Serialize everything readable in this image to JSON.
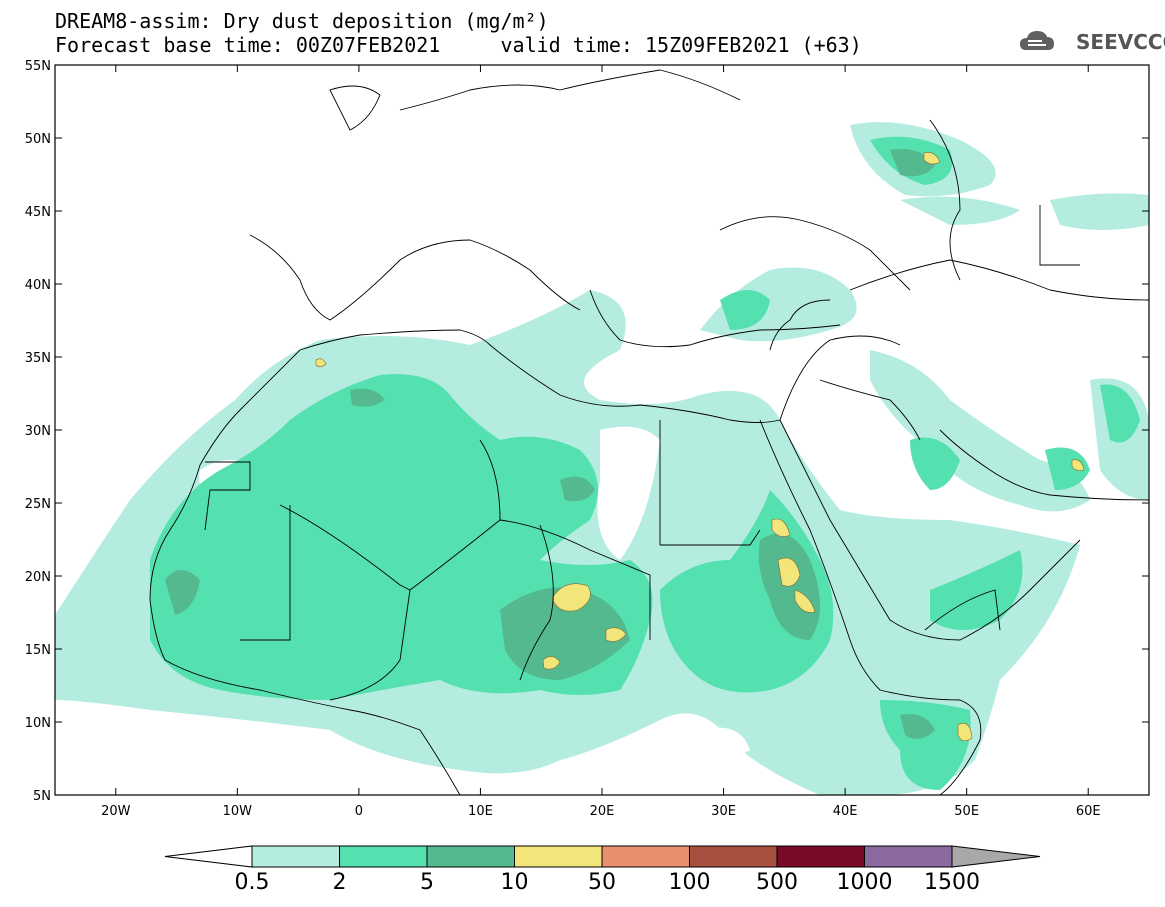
{
  "title": {
    "line1": "DREAM8-assim: Dry dust deposition (mg/m²)",
    "line2": "Forecast base time: 00Z07FEB2021     valid time: 15Z09FEB2021 (+63)"
  },
  "logo": {
    "text": "SEEVCCC",
    "icon": "cloud-logo-icon"
  },
  "map": {
    "lon_range": [
      -25,
      65
    ],
    "lat_range": [
      5,
      55
    ],
    "lat_labels": [
      "55N",
      "50N",
      "45N",
      "40N",
      "35N",
      "30N",
      "25N",
      "20N",
      "15N",
      "10N",
      "5N"
    ],
    "lon_labels": [
      "20W",
      "10W",
      "0",
      "10E",
      "20E",
      "30E",
      "40E",
      "50E",
      "60E"
    ]
  },
  "colorbar": {
    "labels": [
      "0.5",
      "2",
      "5",
      "10",
      "50",
      "100",
      "500",
      "1000",
      "1500"
    ],
    "colors": [
      "#b4ede0",
      "#55e0b0",
      "#55b98f",
      "#f2e57a",
      "#e69070",
      "#a85040",
      "#7a0a28",
      "#8a6aa0",
      "#a8a8a8"
    ]
  },
  "palette": {
    "level1": "#b4ede0",
    "level2": "#55e0b0",
    "level3": "#55b98f",
    "level4": "#f2e57a"
  }
}
